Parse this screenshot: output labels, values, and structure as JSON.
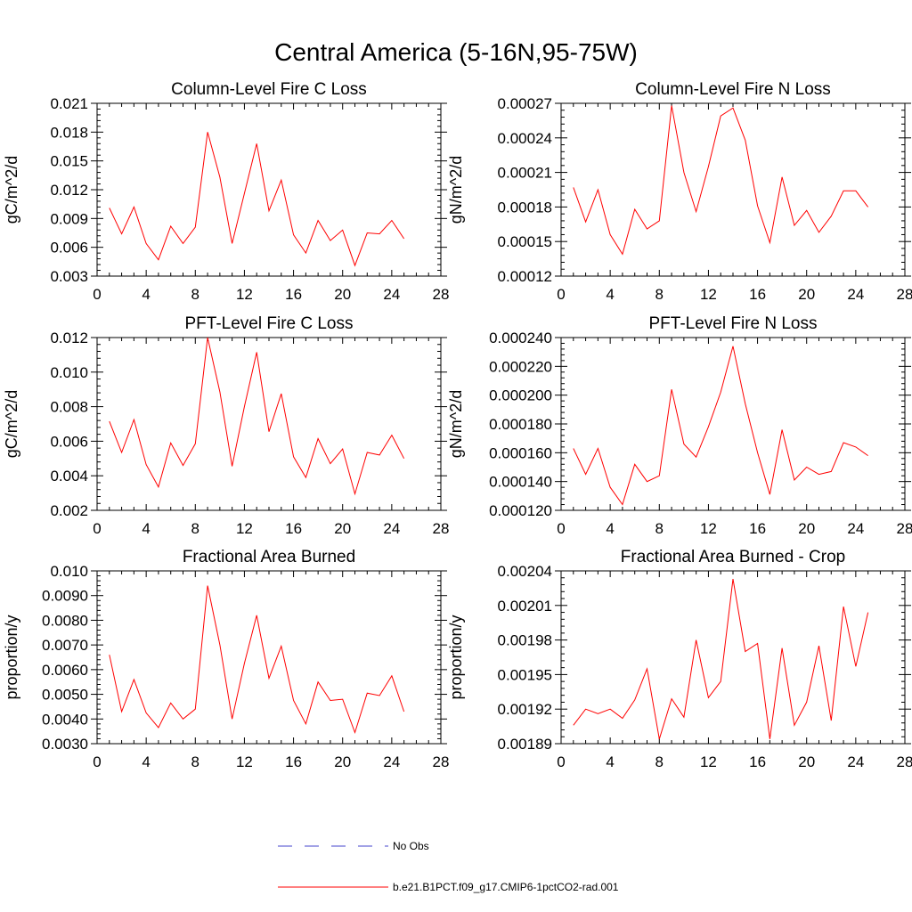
{
  "figure_title": "Central America (5-16N,95-75W)",
  "chart_data": [
    {
      "type": "line",
      "title": "Column-Level Fire C Loss",
      "ylabel": "gC/m^2/d",
      "xlabel": "",
      "xlim": [
        0,
        28
      ],
      "ylim": [
        0.003,
        0.021
      ],
      "xticks": [
        0,
        4,
        8,
        12,
        16,
        20,
        24,
        28
      ],
      "xtick_labels": [
        "0",
        "4",
        "8",
        "12",
        "16",
        "20",
        "24",
        "28"
      ],
      "yticks": [
        0.003,
        0.006,
        0.009,
        0.012,
        0.015,
        0.018,
        0.021
      ],
      "ytick_labels": [
        "0.003",
        "0.006",
        "0.009",
        "0.012",
        "0.015",
        "0.018",
        "0.021"
      ],
      "series": [
        {
          "name": "b.e21.B1PCT.f09_g17.CMIP6-1pctCO2-rad.001",
          "color": "#ff0000",
          "x": [
            1,
            2,
            3,
            4,
            5,
            6,
            7,
            8,
            9,
            10,
            11,
            12,
            13,
            14,
            15,
            16,
            17,
            18,
            19,
            20,
            21,
            22,
            23,
            24,
            25
          ],
          "values": [
            0.0101,
            0.0074,
            0.0102,
            0.0064,
            0.0047,
            0.0082,
            0.0064,
            0.0081,
            0.018,
            0.0133,
            0.0064,
            0.0116,
            0.0168,
            0.0098,
            0.013,
            0.0073,
            0.0054,
            0.0088,
            0.0067,
            0.0078,
            0.0041,
            0.0075,
            0.0074,
            0.0088,
            0.0069
          ]
        }
      ]
    },
    {
      "type": "line",
      "title": "Column-Level Fire N Loss",
      "ylabel": "gN/m^2/d",
      "xlabel": "",
      "xlim": [
        0,
        28
      ],
      "ylim": [
        0.00012,
        0.00027
      ],
      "xticks": [
        0,
        4,
        8,
        12,
        16,
        20,
        24,
        28
      ],
      "xtick_labels": [
        "0",
        "4",
        "8",
        "12",
        "16",
        "20",
        "24",
        "28"
      ],
      "yticks": [
        0.00012,
        0.00015,
        0.00018,
        0.00021,
        0.00024,
        0.00027
      ],
      "ytick_labels": [
        "0.00012",
        "0.00015",
        "0.00018",
        "0.00021",
        "0.00024",
        "0.00027"
      ],
      "series": [
        {
          "name": "b.e21.B1PCT.f09_g17.CMIP6-1pctCO2-rad.001",
          "color": "#ff0000",
          "x": [
            1,
            2,
            3,
            4,
            5,
            6,
            7,
            8,
            9,
            10,
            11,
            12,
            13,
            14,
            15,
            16,
            17,
            18,
            19,
            20,
            21,
            22,
            23,
            24,
            25
          ],
          "values": [
            0.000197,
            0.000167,
            0.000195,
            0.000156,
            0.000139,
            0.000178,
            0.000161,
            0.000168,
            0.000268,
            0.00021,
            0.000176,
            0.000215,
            0.000259,
            0.000266,
            0.000238,
            0.000181,
            0.000149,
            0.000206,
            0.000164,
            0.000177,
            0.000158,
            0.000172,
            0.000194,
            0.000194,
            0.00018
          ]
        }
      ]
    },
    {
      "type": "line",
      "title": "PFT-Level Fire C Loss",
      "ylabel": "gC/m^2/d",
      "xlabel": "",
      "xlim": [
        0,
        28
      ],
      "ylim": [
        0.002,
        0.012
      ],
      "xticks": [
        0,
        4,
        8,
        12,
        16,
        20,
        24,
        28
      ],
      "xtick_labels": [
        "0",
        "4",
        "8",
        "12",
        "16",
        "20",
        "24",
        "28"
      ],
      "yticks": [
        0.002,
        0.004,
        0.006,
        0.008,
        0.01,
        0.012
      ],
      "ytick_labels": [
        "0.002",
        "0.004",
        "0.006",
        "0.008",
        "0.010",
        "0.012"
      ],
      "series": [
        {
          "name": "b.e21.B1PCT.f09_g17.CMIP6-1pctCO2-rad.001",
          "color": "#ff0000",
          "x": [
            1,
            2,
            3,
            4,
            5,
            6,
            7,
            8,
            9,
            10,
            11,
            12,
            13,
            14,
            15,
            16,
            17,
            18,
            19,
            20,
            21,
            22,
            23,
            24,
            25
          ],
          "values": [
            0.00715,
            0.00535,
            0.00725,
            0.00465,
            0.00335,
            0.0059,
            0.0046,
            0.00585,
            0.012,
            0.00885,
            0.00455,
            0.008,
            0.01115,
            0.00655,
            0.00875,
            0.0051,
            0.0039,
            0.00615,
            0.0047,
            0.00555,
            0.00295,
            0.00535,
            0.0052,
            0.00635,
            0.005
          ]
        }
      ]
    },
    {
      "type": "line",
      "title": "PFT-Level Fire N Loss",
      "ylabel": "gN/m^2/d",
      "xlabel": "",
      "xlim": [
        0,
        28
      ],
      "ylim": [
        0.00012,
        0.00024
      ],
      "xticks": [
        0,
        4,
        8,
        12,
        16,
        20,
        24,
        28
      ],
      "xtick_labels": [
        "0",
        "4",
        "8",
        "12",
        "16",
        "20",
        "24",
        "28"
      ],
      "yticks": [
        0.00012,
        0.00014,
        0.00016,
        0.00018,
        0.0002,
        0.00022,
        0.00024
      ],
      "ytick_labels": [
        "0.000120",
        "0.000140",
        "0.000160",
        "0.000180",
        "0.000200",
        "0.000220",
        "0.000240"
      ],
      "series": [
        {
          "name": "b.e21.B1PCT.f09_g17.CMIP6-1pctCO2-rad.001",
          "color": "#ff0000",
          "x": [
            1,
            2,
            3,
            4,
            5,
            6,
            7,
            8,
            9,
            10,
            11,
            12,
            13,
            14,
            15,
            16,
            17,
            18,
            19,
            20,
            21,
            22,
            23,
            24,
            25
          ],
          "values": [
            0.000163,
            0.000145,
            0.000163,
            0.000136,
            0.000124,
            0.000152,
            0.00014,
            0.000144,
            0.000204,
            0.000166,
            0.000157,
            0.000178,
            0.000202,
            0.000234,
            0.000194,
            0.00016,
            0.000131,
            0.000176,
            0.000141,
            0.00015,
            0.000145,
            0.000147,
            0.000167,
            0.000164,
            0.000158
          ]
        }
      ]
    },
    {
      "type": "line",
      "title": "Fractional Area Burned",
      "ylabel": "proportion/y",
      "xlabel": "",
      "xlim": [
        0,
        28
      ],
      "ylim": [
        0.003,
        0.01
      ],
      "xticks": [
        0,
        4,
        8,
        12,
        16,
        20,
        24,
        28
      ],
      "xtick_labels": [
        "0",
        "4",
        "8",
        "12",
        "16",
        "20",
        "24",
        "28"
      ],
      "yticks": [
        0.003,
        0.004,
        0.005,
        0.006,
        0.007,
        0.008,
        0.009,
        0.01
      ],
      "ytick_labels": [
        "0.0030",
        "0.0040",
        "0.0050",
        "0.0060",
        "0.0070",
        "0.0080",
        "0.0090",
        "0.010"
      ],
      "series": [
        {
          "name": "b.e21.B1PCT.f09_g17.CMIP6-1pctCO2-rad.001",
          "color": "#ff0000",
          "x": [
            1,
            2,
            3,
            4,
            5,
            6,
            7,
            8,
            9,
            10,
            11,
            12,
            13,
            14,
            15,
            16,
            17,
            18,
            19,
            20,
            21,
            22,
            23,
            24,
            25
          ],
          "values": [
            0.0066,
            0.0043,
            0.0056,
            0.00425,
            0.00365,
            0.00465,
            0.004,
            0.0044,
            0.0094,
            0.007,
            0.004,
            0.00625,
            0.0082,
            0.00565,
            0.00695,
            0.00475,
            0.0038,
            0.0055,
            0.00475,
            0.0048,
            0.00345,
            0.00505,
            0.00495,
            0.00575,
            0.0043
          ]
        }
      ]
    },
    {
      "type": "line",
      "title": "Fractional Area Burned - Crop",
      "ylabel": "proportion/y",
      "xlabel": "",
      "xlim": [
        0,
        28
      ],
      "ylim": [
        0.00189,
        0.00204
      ],
      "xticks": [
        0,
        4,
        8,
        12,
        16,
        20,
        24,
        28
      ],
      "xtick_labels": [
        "0",
        "4",
        "8",
        "12",
        "16",
        "20",
        "24",
        "28"
      ],
      "yticks": [
        0.00189,
        0.00192,
        0.00195,
        0.00198,
        0.00201,
        0.00204
      ],
      "ytick_labels": [
        "0.00189",
        "0.00192",
        "0.00195",
        "0.00198",
        "0.00201",
        "0.00204"
      ],
      "series": [
        {
          "name": "b.e21.B1PCT.f09_g17.CMIP6-1pctCO2-rad.001",
          "color": "#ff0000",
          "x": [
            1,
            2,
            3,
            4,
            5,
            6,
            7,
            8,
            9,
            10,
            11,
            12,
            13,
            14,
            15,
            16,
            17,
            18,
            19,
            20,
            21,
            22,
            23,
            24,
            25
          ],
          "values": [
            0.001906,
            0.00192,
            0.001916,
            0.00192,
            0.001912,
            0.001928,
            0.001955,
            0.001894,
            0.001929,
            0.001913,
            0.00198,
            0.00193,
            0.001944,
            0.002033,
            0.00197,
            0.001977,
            0.001894,
            0.001973,
            0.001906,
            0.001926,
            0.001975,
            0.00191,
            0.002009,
            0.001957,
            0.002004
          ]
        }
      ]
    }
  ],
  "legend": {
    "position": "bottom-center",
    "items": [
      {
        "label": "No Obs",
        "color": "#4444cc",
        "style": "dashed"
      },
      {
        "label": "b.e21.B1PCT.f09_g17.CMIP6-1pctCO2-rad.001",
        "color": "#ff0000",
        "style": "solid"
      }
    ]
  }
}
